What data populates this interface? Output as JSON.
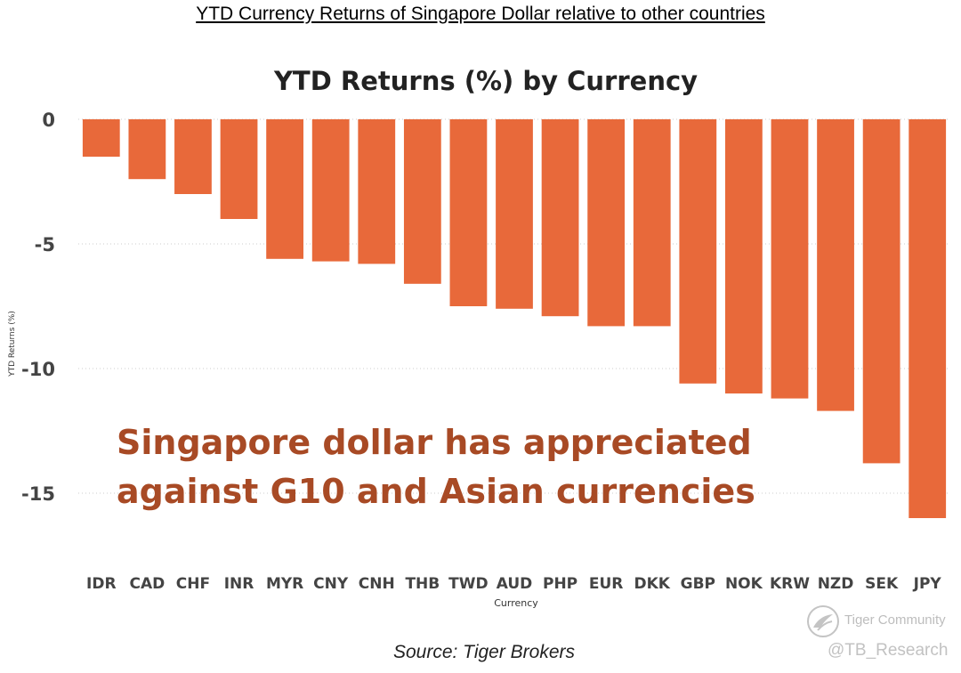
{
  "page": {
    "title": "YTD Currency Returns of Singapore Dollar relative to other countries",
    "annotation_lines": [
      "Singapore dollar has appreciated",
      "against G10 and Asian currencies"
    ],
    "source": "Source: Tiger Brokers"
  },
  "watermark": {
    "brand": "Tiger Community",
    "handle": "@TB_Research",
    "logo_icon": "tiger-community-logo-icon"
  },
  "chart_data": {
    "type": "bar",
    "title": "YTD Returns (%) by Currency",
    "xlabel": "Currency",
    "ylabel": "YTD Returns (%)",
    "categories": [
      "IDR",
      "CAD",
      "CHF",
      "INR",
      "MYR",
      "CNY",
      "CNH",
      "THB",
      "TWD",
      "AUD",
      "PHP",
      "EUR",
      "DKK",
      "GBP",
      "NOK",
      "KRW",
      "NZD",
      "SEK",
      "JPY"
    ],
    "values": [
      -1.5,
      -2.4,
      -3.0,
      -4.0,
      -5.6,
      -5.7,
      -5.8,
      -6.6,
      -7.5,
      -7.6,
      -7.9,
      -8.3,
      -8.3,
      -10.6,
      -11.0,
      -11.2,
      -11.7,
      -13.8,
      -16.0
    ],
    "yticks": [
      0,
      -5,
      -10,
      -15
    ],
    "ylim": [
      -16.5,
      0
    ],
    "grid": "horizontal-dotted",
    "bar_color": "#e8693a",
    "annotation_color": "#a84a25"
  }
}
